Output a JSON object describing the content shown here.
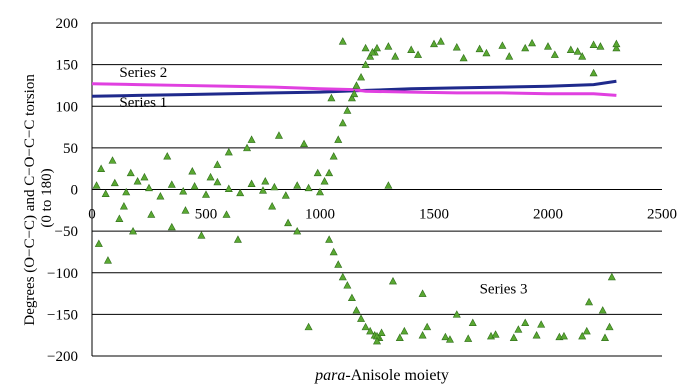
{
  "chart_data": {
    "type": "scatter",
    "title": "",
    "xlabel_prefix": "para",
    "xlabel_rest": "-Anisole moiety",
    "ylabel_line1": "Degrees (O−C−C) and C−O−C−C torsion",
    "ylabel_line2": "(0 to 180)",
    "xlim": [
      0,
      2500
    ],
    "ylim": [
      -200,
      200
    ],
    "x_ticks": [
      0,
      500,
      1000,
      1500,
      2000,
      2500
    ],
    "x_tick_labels": [
      "0",
      "500",
      "1000",
      "1500",
      "2000",
      "2500"
    ],
    "y_ticks": [
      -200,
      -150,
      -100,
      -50,
      0,
      50,
      100,
      150,
      200
    ],
    "y_tick_labels": [
      "−200",
      "−150",
      "−100",
      "−50",
      "0",
      "50",
      "100",
      "150",
      "200"
    ],
    "grid": "horizontal",
    "legend": "none",
    "series": [
      {
        "name": "Series 1",
        "mark": "line",
        "color": "#1f2a8c",
        "x": [
          0,
          200,
          400,
          600,
          800,
          1000,
          1200,
          1400,
          1600,
          1800,
          2000,
          2200,
          2300
        ],
        "y": [
          112,
          113,
          114,
          115,
          116,
          117,
          119,
          121,
          122,
          123,
          124,
          126,
          130
        ]
      },
      {
        "name": "Series 2",
        "mark": "line",
        "color": "#e040e0",
        "x": [
          0,
          200,
          400,
          600,
          800,
          1000,
          1150,
          1200,
          1400,
          1600,
          1800,
          2000,
          2200,
          2300
        ],
        "y": [
          127,
          126,
          125,
          124,
          123,
          121,
          120,
          118,
          117,
          116,
          116,
          115,
          115,
          113
        ]
      },
      {
        "name": "Series 3",
        "mark": "scatter",
        "color": "#5aa832",
        "x": [
          20,
          60,
          100,
          150,
          200,
          250,
          300,
          350,
          400,
          450,
          500,
          550,
          600,
          650,
          700,
          750,
          800,
          850,
          900,
          950,
          1000,
          1020,
          40,
          90,
          140,
          180,
          230,
          260,
          350,
          440,
          480,
          550,
          600,
          640,
          700,
          760,
          820,
          860,
          930,
          990,
          30,
          70,
          120,
          170,
          330,
          410,
          520,
          590,
          680,
          790,
          900,
          1040,
          1060,
          1080,
          1100,
          1120,
          1140,
          1160,
          1180,
          1200,
          1220,
          1240,
          1250,
          1040,
          1060,
          1080,
          1100,
          1120,
          1140,
          1160,
          1180,
          1200,
          1220,
          1240,
          1260,
          1200,
          1300,
          1400,
          1500,
          1600,
          1700,
          1800,
          1900,
          2000,
          2100,
          2200,
          2300,
          1250,
          1350,
          1450,
          1550,
          1650,
          1750,
          1850,
          1950,
          2050,
          2150,
          2250,
          1230,
          1330,
          1430,
          1530,
          1630,
          1730,
          1830,
          1930,
          2030,
          2130,
          2230,
          2300,
          1270,
          1370,
          1470,
          1570,
          1670,
          1770,
          1870,
          1970,
          2070,
          2170,
          2270,
          1100,
          1150,
          1300,
          1250,
          1600,
          1900,
          2150,
          2200,
          1450,
          2280,
          2240,
          2180,
          1050,
          1320,
          950
        ],
        "y": [
          5,
          -5,
          8,
          -3,
          10,
          2,
          -8,
          6,
          -2,
          4,
          -6,
          9,
          1,
          -4,
          7,
          -1,
          3,
          -7,
          5,
          2,
          -3,
          10,
          25,
          35,
          -20,
          -50,
          15,
          -30,
          -45,
          22,
          -55,
          30,
          45,
          -60,
          60,
          10,
          65,
          -40,
          55,
          20,
          -65,
          -85,
          -35,
          20,
          40,
          -25,
          15,
          -30,
          50,
          -20,
          -50,
          20,
          40,
          60,
          80,
          95,
          110,
          125,
          135,
          150,
          160,
          165,
          170,
          -60,
          -75,
          -90,
          -105,
          -115,
          -130,
          -145,
          -155,
          -165,
          -170,
          -175,
          -178,
          170,
          172,
          168,
          175,
          171,
          169,
          173,
          170,
          172,
          168,
          174,
          170,
          -176,
          -178,
          -175,
          -177,
          -179,
          -176,
          -178,
          -175,
          -177,
          -176,
          -178,
          165,
          160,
          162,
          178,
          158,
          164,
          160,
          176,
          162,
          166,
          172,
          175,
          -172,
          -170,
          -165,
          -180,
          -160,
          -174,
          -168,
          -162,
          -176,
          -170,
          -165,
          178,
          115,
          5,
          -182,
          -150,
          -160,
          160,
          140,
          -125,
          -105,
          -145,
          -135,
          110,
          -110,
          -165
        ]
      }
    ],
    "annotations": [
      {
        "text": "Series 2",
        "x": 120,
        "y": 135
      },
      {
        "text": "Series 1",
        "x": 120,
        "y": 99
      },
      {
        "text": "Series 3",
        "x": 1700,
        "y": -125
      }
    ]
  }
}
